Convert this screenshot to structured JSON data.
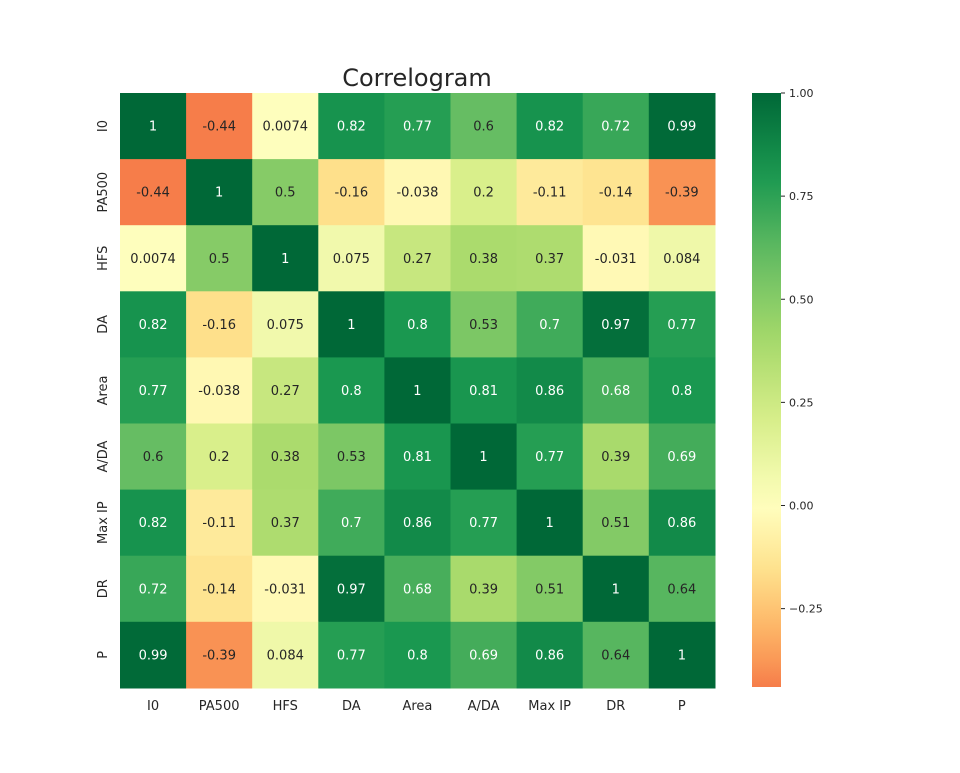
{
  "chart_data": {
    "type": "heatmap",
    "title": "Correlogram",
    "colormap": "RdYlGn",
    "x_labels": [
      "I0",
      "PA500",
      "HFS",
      "DA",
      "Area",
      "A/DA",
      "Max IP",
      "DR",
      "P"
    ],
    "y_labels": [
      "I0",
      "PA500",
      "HFS",
      "DA",
      "Area",
      "A/DA",
      "Max IP",
      "DR",
      "P"
    ],
    "values": [
      [
        1,
        -0.44,
        0.0074,
        0.82,
        0.77,
        0.6,
        0.82,
        0.72,
        0.99
      ],
      [
        -0.44,
        1,
        0.5,
        -0.16,
        -0.038,
        0.2,
        -0.11,
        -0.14,
        -0.39
      ],
      [
        0.0074,
        0.5,
        1,
        0.075,
        0.27,
        0.38,
        0.37,
        -0.031,
        0.084
      ],
      [
        0.82,
        -0.16,
        0.075,
        1,
        0.8,
        0.53,
        0.7,
        0.97,
        0.77
      ],
      [
        0.77,
        -0.038,
        0.27,
        0.8,
        1,
        0.81,
        0.86,
        0.68,
        0.8
      ],
      [
        0.6,
        0.2,
        0.38,
        0.53,
        0.81,
        1,
        0.77,
        0.39,
        0.69
      ],
      [
        0.82,
        -0.11,
        0.37,
        0.7,
        0.86,
        0.77,
        1,
        0.51,
        0.86
      ],
      [
        0.72,
        -0.14,
        -0.031,
        0.97,
        0.68,
        0.39,
        0.51,
        1,
        0.64
      ],
      [
        0.99,
        -0.39,
        0.084,
        0.77,
        0.8,
        0.69,
        0.86,
        0.64,
        1
      ]
    ],
    "labels": [
      [
        "1",
        "-0.44",
        "0.0074",
        "0.82",
        "0.77",
        "0.6",
        "0.82",
        "0.72",
        "0.99"
      ],
      [
        "-0.44",
        "1",
        "0.5",
        "-0.16",
        "-0.038",
        "0.2",
        "-0.11",
        "-0.14",
        "-0.39"
      ],
      [
        "0.0074",
        "0.5",
        "1",
        "0.075",
        "0.27",
        "0.38",
        "0.37",
        "-0.031",
        "0.084"
      ],
      [
        "0.82",
        "-0.16",
        "0.075",
        "1",
        "0.8",
        "0.53",
        "0.7",
        "0.97",
        "0.77"
      ],
      [
        "0.77",
        "-0.038",
        "0.27",
        "0.8",
        "1",
        "0.81",
        "0.86",
        "0.68",
        "0.8"
      ],
      [
        "0.6",
        "0.2",
        "0.38",
        "0.53",
        "0.81",
        "1",
        "0.77",
        "0.39",
        "0.69"
      ],
      [
        "0.82",
        "-0.11",
        "0.37",
        "0.7",
        "0.86",
        "0.77",
        "1",
        "0.51",
        "0.86"
      ],
      [
        "0.72",
        "-0.14",
        "-0.031",
        "0.97",
        "0.68",
        "0.39",
        "0.51",
        "1",
        "0.64"
      ],
      [
        "0.99",
        "-0.39",
        "0.084",
        "0.77",
        "0.8",
        "0.69",
        "0.86",
        "0.64",
        "1"
      ]
    ],
    "colorbar": {
      "range": [
        -0.44,
        1.0
      ],
      "ticks": [
        1.0,
        0.75,
        0.5,
        0.25,
        0.0,
        -0.25
      ],
      "tick_labels": [
        "1.00",
        "0.75",
        "0.50",
        "0.25",
        "0.00",
        "−0.25"
      ]
    }
  }
}
